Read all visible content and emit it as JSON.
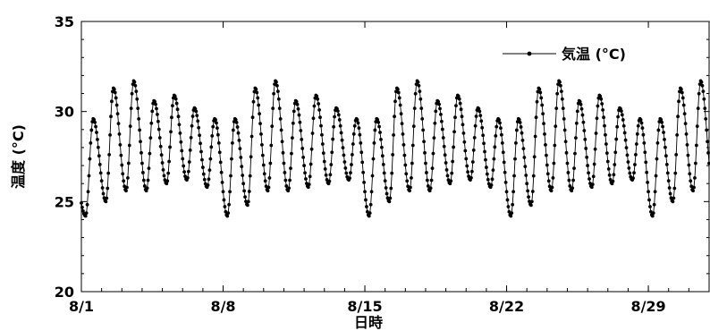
{
  "chart_data": {
    "type": "line",
    "xlabel": "日時",
    "ylabel": "温度 (°C)",
    "ylim": [
      20,
      35
    ],
    "yticks": [
      "20",
      "25",
      "30",
      "35"
    ],
    "xlim_days": [
      1,
      32
    ],
    "xticks": [
      {
        "label": "8/1",
        "day": 1
      },
      {
        "label": "8/8",
        "day": 8
      },
      {
        "label": "8/15",
        "day": 15
      },
      {
        "label": "8/22",
        "day": 22
      },
      {
        "label": "8/29",
        "day": 29
      }
    ],
    "legend_position": "top-right",
    "series": [
      {
        "name": "気温 (°C)",
        "sampling": "hourly",
        "daily_min": [
          24.2,
          25.0,
          25.6,
          25.6,
          26.0,
          26.2,
          25.8,
          24.2,
          24.8,
          25.6,
          25.6,
          25.8,
          26.0,
          26.2,
          24.2,
          25.0,
          25.6,
          25.6,
          26.0,
          26.2,
          25.8,
          24.2,
          24.8,
          25.6,
          25.6,
          25.8,
          26.0,
          26.2,
          24.2,
          25.0,
          25.6
        ],
        "daily_max": [
          29.6,
          31.3,
          31.7,
          30.6,
          30.9,
          30.2,
          29.6,
          29.6,
          31.3,
          31.7,
          30.6,
          30.9,
          30.2,
          29.6,
          29.6,
          31.3,
          31.7,
          30.6,
          30.9,
          30.2,
          29.6,
          29.6,
          31.3,
          31.7,
          30.6,
          30.9,
          30.2,
          29.6,
          29.6,
          31.3,
          31.7
        ],
        "min_hour": 5,
        "max_hour": 14
      }
    ]
  }
}
